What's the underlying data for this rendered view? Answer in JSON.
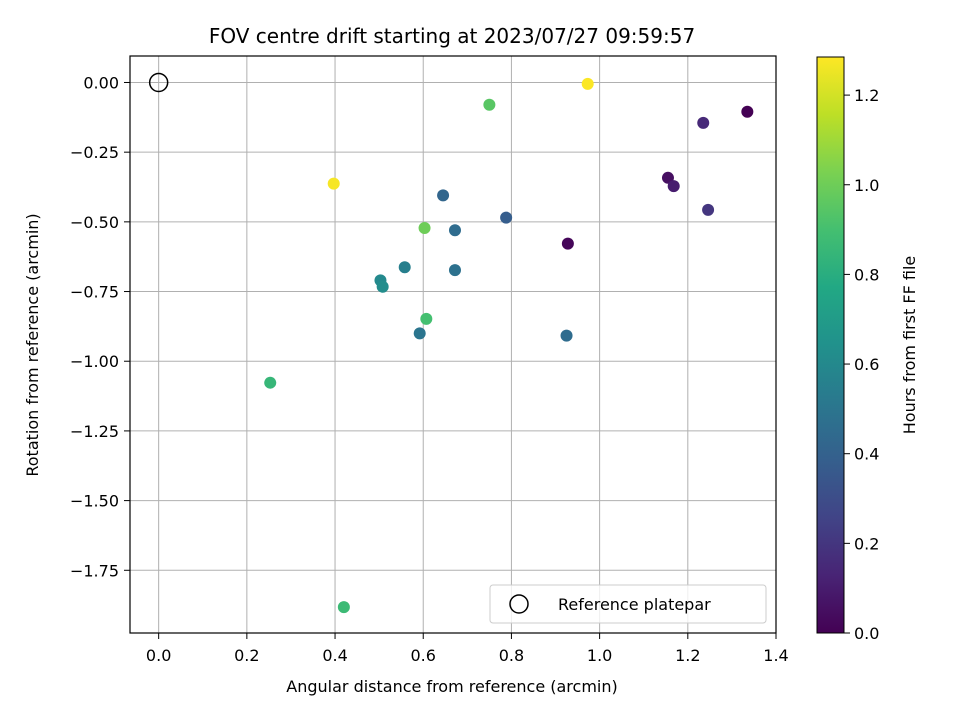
{
  "chart_data": {
    "type": "scatter",
    "title": "FOV centre drift starting at 2023/07/27 09:59:57",
    "xlabel": "Angular distance from reference (arcmin)",
    "ylabel": "Rotation from reference (arcmin)",
    "xlim": [
      -0.065,
      1.4
    ],
    "ylim": [
      -1.975,
      0.095
    ],
    "xticks": [
      0.0,
      0.2,
      0.4,
      0.6,
      0.8,
      1.0,
      1.2,
      1.4
    ],
    "xtick_labels": [
      "0.0",
      "0.2",
      "0.4",
      "0.6",
      "0.8",
      "1.0",
      "1.2",
      "1.4"
    ],
    "yticks": [
      0.0,
      -0.25,
      -0.5,
      -0.75,
      -1.0,
      -1.25,
      -1.5,
      -1.75
    ],
    "ytick_labels": [
      "0.00",
      "−0.25",
      "−0.50",
      "−0.75",
      "−1.00",
      "−1.25",
      "−1.50",
      "−1.75"
    ],
    "grid": true,
    "colormap": "viridis",
    "colorbar": {
      "label": "Hours from first FF file",
      "range": [
        0.0,
        1.285
      ],
      "ticks": [
        0.0,
        0.2,
        0.4,
        0.6,
        0.8,
        1.0,
        1.2
      ],
      "tick_labels": [
        "0.0",
        "0.2",
        "0.4",
        "0.6",
        "0.8",
        "1.0",
        "1.2"
      ]
    },
    "reference": {
      "x": 0.0,
      "y": 0.0,
      "label": "Reference platepar"
    },
    "legend_position": "lower-right",
    "points": [
      {
        "x": 1.335,
        "y": -0.105,
        "hours": 0.0
      },
      {
        "x": 0.928,
        "y": -0.578,
        "hours": 0.02
      },
      {
        "x": 1.155,
        "y": -0.342,
        "hours": 0.05
      },
      {
        "x": 1.168,
        "y": -0.372,
        "hours": 0.1
      },
      {
        "x": 1.235,
        "y": -0.145,
        "hours": 0.15
      },
      {
        "x": 1.246,
        "y": -0.457,
        "hours": 0.2
      },
      {
        "x": 0.788,
        "y": -0.485,
        "hours": 0.38
      },
      {
        "x": 0.645,
        "y": -0.405,
        "hours": 0.42
      },
      {
        "x": 0.672,
        "y": -0.53,
        "hours": 0.45
      },
      {
        "x": 0.925,
        "y": -0.908,
        "hours": 0.45
      },
      {
        "x": 0.672,
        "y": -0.673,
        "hours": 0.48
      },
      {
        "x": 0.592,
        "y": -0.9,
        "hours": 0.5
      },
      {
        "x": 0.558,
        "y": -0.663,
        "hours": 0.55
      },
      {
        "x": 0.503,
        "y": -0.71,
        "hours": 0.6
      },
      {
        "x": 0.508,
        "y": -0.733,
        "hours": 0.62
      },
      {
        "x": 0.253,
        "y": -1.077,
        "hours": 0.85
      },
      {
        "x": 0.42,
        "y": -1.882,
        "hours": 0.87
      },
      {
        "x": 0.607,
        "y": -0.848,
        "hours": 0.9
      },
      {
        "x": 0.75,
        "y": -0.08,
        "hours": 0.95
      },
      {
        "x": 0.603,
        "y": -0.522,
        "hours": 1.0
      },
      {
        "x": 0.397,
        "y": -0.363,
        "hours": 1.27
      },
      {
        "x": 0.973,
        "y": -0.005,
        "hours": 1.28
      }
    ],
    "colors": {
      "axes": "#000000",
      "grid": "#b0b0b0",
      "background": "#ffffff"
    }
  }
}
